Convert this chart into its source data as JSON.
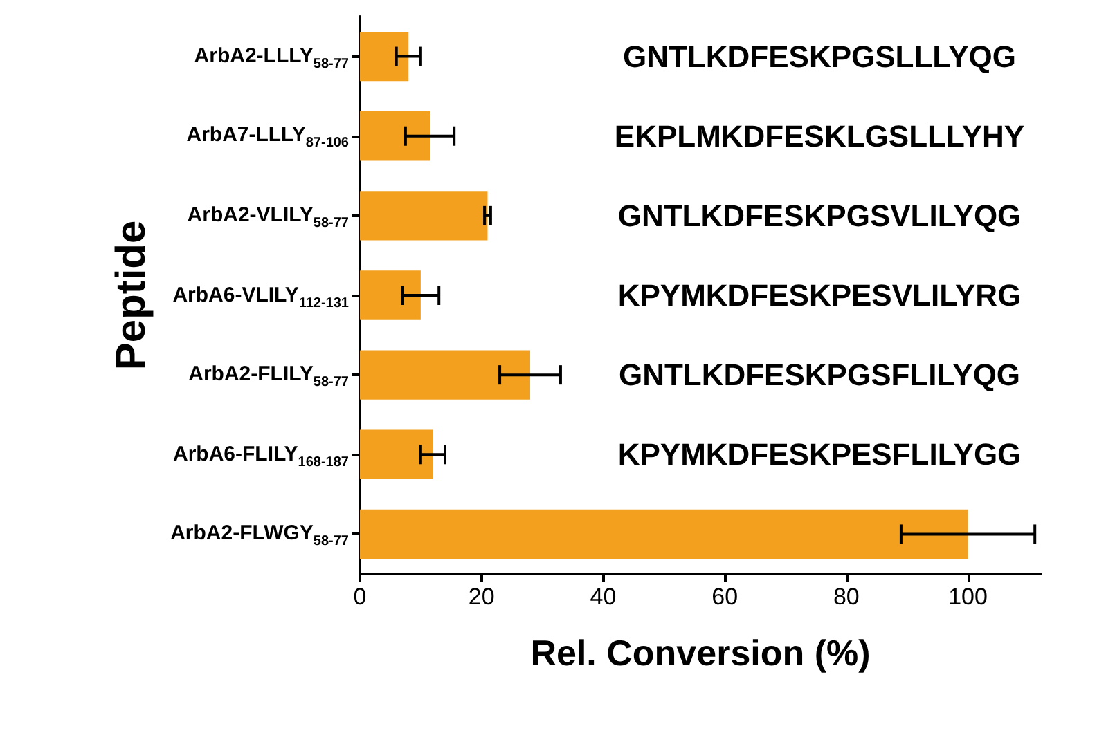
{
  "chart_data": {
    "type": "bar",
    "orientation": "horizontal",
    "xlabel": "Rel. Conversion (%)",
    "ylabel": "Peptide",
    "categories": [
      "ArbA2-LLLY$_{58-77}$",
      "ArbA7-LLLY$_{87-106}$",
      "ArbA2-VLILY$_{58-77}$",
      "ArbA6-VLILY$_{112-131}$",
      "ArbA2-FLILY$_{58-77}$",
      "ArbA6-FLILY$_{168-187}$",
      "ArbA2-FLWGY$_{58-77}$"
    ],
    "values": [
      8,
      11.5,
      21,
      10,
      28,
      12,
      100
    ],
    "errors": [
      2,
      4,
      0.5,
      3,
      5,
      2,
      11
    ],
    "color": "#f2a01e",
    "xlim": [
      0,
      112
    ],
    "xticks": [
      0,
      20,
      40,
      60,
      80,
      100
    ],
    "grid": false,
    "annotations": [
      "GNTLKDFESKPGSLLLYQG",
      "EKPLMKDFESKLGSLLLYHY",
      "GNTLKDFESKPGSVLILYQG",
      "KPYMKDFESKPESVLILYRG",
      "GNTLKDFESKPGSFLILYQG",
      "KPYMKDFESKPESFLILYGG"
    ]
  }
}
